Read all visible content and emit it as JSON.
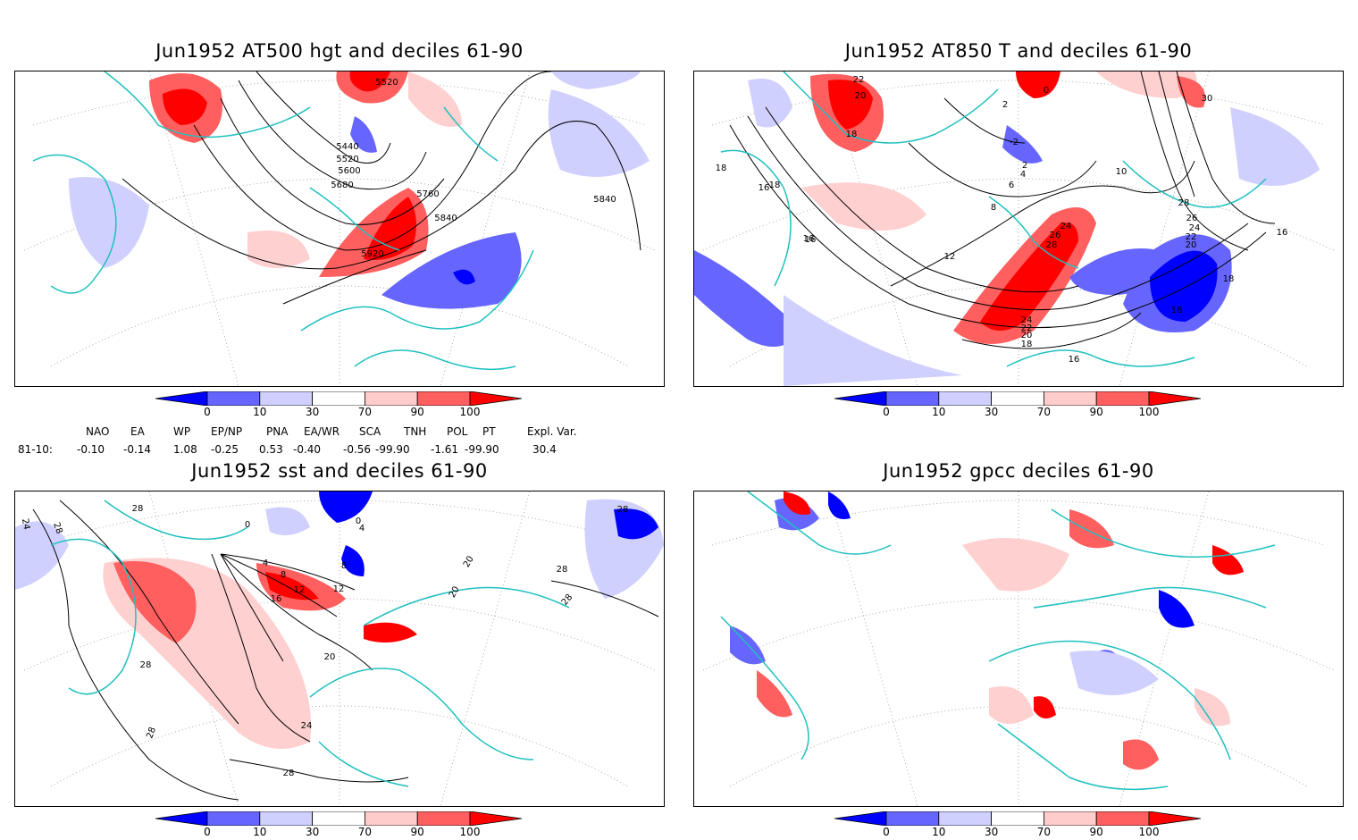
{
  "panels": [
    {
      "title": "Jun1952 AT500 hgt and deciles 61-90",
      "contour_labels": [
        "5520",
        "5440",
        "5520",
        "5600",
        "5680",
        "5760",
        "5840",
        "5920",
        "5840"
      ]
    },
    {
      "title": "Jun1952 AT850 T and deciles 61-90",
      "contour_labels": [
        "22",
        "20",
        "18",
        "0",
        "2",
        "-2",
        "2",
        "4",
        "6",
        "8",
        "10",
        "16",
        "18",
        "16",
        "12",
        "28",
        "24",
        "26",
        "30",
        "28",
        "26",
        "24",
        "22",
        "20",
        "18",
        "16",
        "24",
        "22",
        "20",
        "18",
        "16",
        "18",
        "16",
        "18"
      ]
    },
    {
      "title": "Jun1952 sst and deciles 61-90",
      "contour_labels": [
        "24",
        "28",
        "28",
        "0",
        "4",
        "8",
        "12",
        "16",
        "20",
        "24",
        "28",
        "28",
        "28",
        "12",
        "8",
        "0",
        "4",
        "20",
        "20",
        "28",
        "28",
        "28"
      ]
    },
    {
      "title": "Jun1952 gpcc deciles 61-90",
      "contour_labels": []
    }
  ],
  "colorbar": {
    "tick_labels": [
      "0",
      "10",
      "30",
      "70",
      "90",
      "100"
    ],
    "colors": [
      "#0000ff",
      "#6666ff",
      "#d0d0ff",
      "#ffffff",
      "#ffcccc",
      "#ff5f5f",
      "#ff0000"
    ]
  },
  "indices": {
    "headers": [
      "NAO",
      "EA",
      "WP",
      "EP/NP",
      "PNA",
      "EA/WR",
      "SCA",
      "TNH",
      "POL",
      "PT",
      "Expl. Var."
    ],
    "row_label": "81-10:",
    "values": [
      "-0.10",
      "-0.14",
      "1.08",
      "-0.25",
      "0.53",
      "-0.40",
      "-0.56",
      "-99.90",
      "-1.61",
      "-99.90",
      "30.4"
    ]
  },
  "colors": {
    "coast": "#20c0c0",
    "grid": "#999999",
    "contour": "#000000",
    "red_dark": "#ff0000",
    "red_mid": "#ff5f5f",
    "red_light": "#ffd0d0",
    "blue_dark": "#0000ff",
    "blue_mid": "#6666ff",
    "blue_light": "#d0d0ff"
  }
}
